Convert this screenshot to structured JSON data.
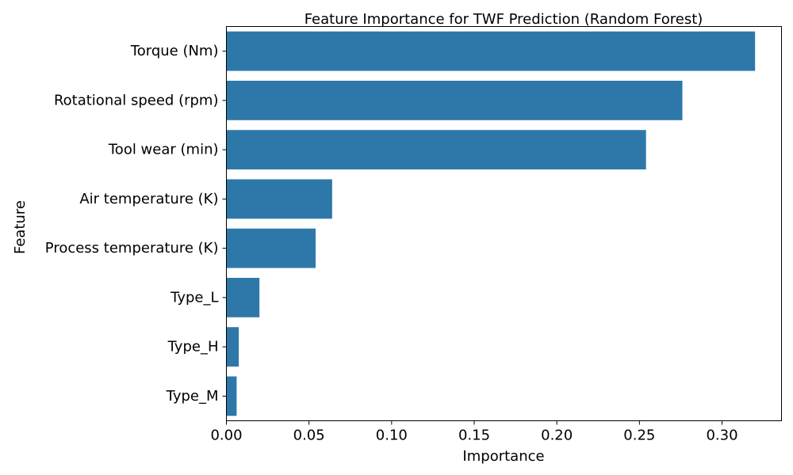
{
  "chart_data": {
    "type": "bar",
    "orientation": "horizontal",
    "title": "Feature Importance for TWF Prediction (Random Forest)",
    "xlabel": "Importance",
    "ylabel": "Feature",
    "categories": [
      "Torque (Nm)",
      "Rotational speed (rpm)",
      "Tool wear (min)",
      "Air temperature (K)",
      "Process temperature (K)",
      "Type_L",
      "Type_H",
      "Type_M"
    ],
    "values": [
      0.32,
      0.276,
      0.254,
      0.064,
      0.054,
      0.02,
      0.0075,
      0.0062
    ],
    "xlim": [
      0,
      0.336
    ],
    "xticks": [
      0.0,
      0.05,
      0.1,
      0.15,
      0.2,
      0.25,
      0.3
    ],
    "xtick_labels": [
      "0.00",
      "0.05",
      "0.10",
      "0.15",
      "0.20",
      "0.25",
      "0.30"
    ],
    "bar_color": "#2e78a9",
    "grid": false,
    "legend": "none"
  }
}
